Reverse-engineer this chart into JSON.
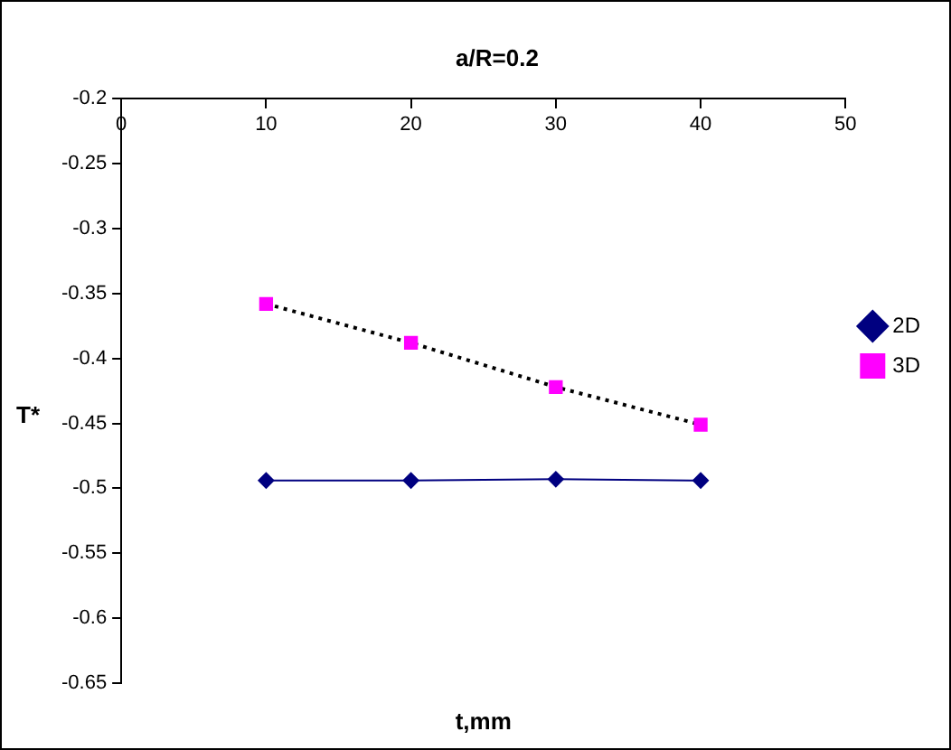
{
  "chart_data": {
    "type": "line",
    "title": "a/R=0.2",
    "xlabel": "t,mm",
    "ylabel": "T*",
    "x": [
      10,
      20,
      30,
      40
    ],
    "series": [
      {
        "name": "2D",
        "color": "#000080",
        "values": [
          -0.494,
          -0.494,
          -0.493,
          -0.494
        ],
        "marker": "diamond",
        "line_style": "solid"
      },
      {
        "name": "3D",
        "color": "#ff00ff",
        "values": [
          -0.358,
          -0.388,
          -0.422,
          -0.451
        ],
        "marker": "square",
        "line_style": "dotted"
      }
    ],
    "xlim": [
      0,
      50
    ],
    "xticks": [
      0,
      10,
      20,
      30,
      40,
      50
    ],
    "ylim": [
      -0.65,
      -0.2
    ],
    "yticks": [
      -0.65,
      -0.6,
      -0.55,
      -0.5,
      -0.45,
      -0.4,
      -0.35,
      -0.3,
      -0.25,
      -0.2
    ],
    "grid": false,
    "legend": "right"
  }
}
